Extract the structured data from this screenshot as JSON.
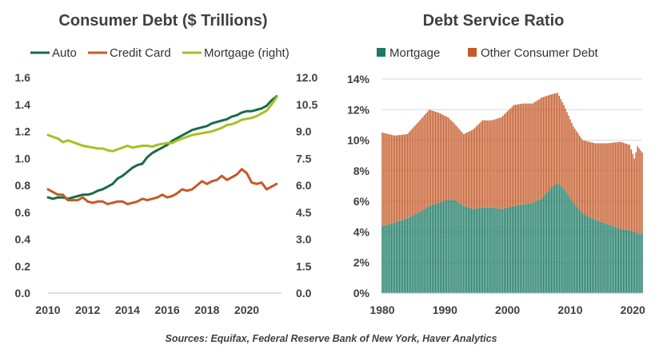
{
  "source": "Sources: Equifax,  Federal  Reserve Bank of New York, Haver Analytics",
  "chart_data": [
    {
      "type": "line",
      "title": "Consumer Debt ($ Trillions)",
      "x_ticks": [
        "2010",
        "2012",
        "2014",
        "2016",
        "2018",
        "2020"
      ],
      "xlim": [
        2010,
        2021.75
      ],
      "y_left_ticks": [
        "0.0",
        "0.2",
        "0.4",
        "0.6",
        "0.8",
        "1.0",
        "1.2",
        "1.4",
        "1.6"
      ],
      "y_left_lim": [
        0,
        1.6
      ],
      "y_right_ticks": [
        "0.0",
        "1.5",
        "3.0",
        "4.5",
        "6.0",
        "7.5",
        "9.0",
        "10.5",
        "12.0"
      ],
      "y_right_lim": [
        0,
        12
      ],
      "grid": false,
      "legend_position": "top",
      "series": [
        {
          "name": "Auto",
          "axis": "left",
          "color": "#1a6b47",
          "x": [
            2010,
            2010.25,
            2010.5,
            2010.75,
            2011,
            2011.25,
            2011.5,
            2011.75,
            2012,
            2012.25,
            2012.5,
            2012.75,
            2013,
            2013.25,
            2013.5,
            2013.75,
            2014,
            2014.25,
            2014.5,
            2014.75,
            2015,
            2015.25,
            2015.5,
            2015.75,
            2016,
            2016.25,
            2016.5,
            2016.75,
            2017,
            2017.25,
            2017.5,
            2017.75,
            2018,
            2018.25,
            2018.5,
            2018.75,
            2019,
            2019.25,
            2019.5,
            2019.75,
            2020,
            2020.25,
            2020.5,
            2020.75,
            2021,
            2021.25,
            2021.5
          ],
          "y": [
            0.71,
            0.7,
            0.71,
            0.71,
            0.7,
            0.71,
            0.72,
            0.73,
            0.73,
            0.74,
            0.76,
            0.77,
            0.79,
            0.81,
            0.85,
            0.87,
            0.9,
            0.93,
            0.95,
            0.96,
            1.01,
            1.04,
            1.06,
            1.08,
            1.1,
            1.13,
            1.15,
            1.17,
            1.19,
            1.21,
            1.22,
            1.23,
            1.24,
            1.26,
            1.27,
            1.28,
            1.29,
            1.31,
            1.32,
            1.34,
            1.35,
            1.35,
            1.36,
            1.37,
            1.39,
            1.43,
            1.46
          ]
        },
        {
          "name": "Credit Card",
          "axis": "left",
          "color": "#c55a28",
          "x": [
            2010,
            2010.25,
            2010.5,
            2010.75,
            2011,
            2011.25,
            2011.5,
            2011.75,
            2012,
            2012.25,
            2012.5,
            2012.75,
            2013,
            2013.25,
            2013.5,
            2013.75,
            2014,
            2014.25,
            2014.5,
            2014.75,
            2015,
            2015.25,
            2015.5,
            2015.75,
            2016,
            2016.25,
            2016.5,
            2016.75,
            2017,
            2017.25,
            2017.5,
            2017.75,
            2018,
            2018.25,
            2018.5,
            2018.75,
            2019,
            2019.25,
            2019.5,
            2019.75,
            2020,
            2020.25,
            2020.5,
            2020.75,
            2021,
            2021.25,
            2021.5
          ],
          "y": [
            0.77,
            0.75,
            0.73,
            0.73,
            0.69,
            0.69,
            0.69,
            0.71,
            0.68,
            0.67,
            0.68,
            0.68,
            0.66,
            0.67,
            0.68,
            0.68,
            0.66,
            0.67,
            0.68,
            0.7,
            0.69,
            0.7,
            0.71,
            0.73,
            0.71,
            0.72,
            0.74,
            0.77,
            0.76,
            0.77,
            0.8,
            0.83,
            0.81,
            0.83,
            0.84,
            0.87,
            0.84,
            0.86,
            0.88,
            0.92,
            0.89,
            0.82,
            0.81,
            0.82,
            0.77,
            0.79,
            0.81
          ]
        },
        {
          "name": "Mortgage (right)",
          "axis": "right",
          "color": "#a8c020",
          "x": [
            2010,
            2010.25,
            2010.5,
            2010.75,
            2011,
            2011.25,
            2011.5,
            2011.75,
            2012,
            2012.25,
            2012.5,
            2012.75,
            2013,
            2013.25,
            2013.5,
            2013.75,
            2014,
            2014.25,
            2014.5,
            2014.75,
            2015,
            2015.25,
            2015.5,
            2015.75,
            2016,
            2016.25,
            2016.5,
            2016.75,
            2017,
            2017.25,
            2017.5,
            2017.75,
            2018,
            2018.25,
            2018.5,
            2018.75,
            2019,
            2019.25,
            2019.5,
            2019.75,
            2020,
            2020.25,
            2020.5,
            2020.75,
            2021,
            2021.25,
            2021.5
          ],
          "y": [
            8.8,
            8.7,
            8.6,
            8.4,
            8.5,
            8.4,
            8.3,
            8.2,
            8.15,
            8.1,
            8.05,
            8.05,
            7.95,
            7.9,
            8.0,
            8.1,
            8.2,
            8.1,
            8.15,
            8.2,
            8.2,
            8.15,
            8.25,
            8.3,
            8.35,
            8.35,
            8.5,
            8.6,
            8.7,
            8.8,
            8.85,
            8.9,
            8.95,
            9.0,
            9.1,
            9.2,
            9.35,
            9.4,
            9.5,
            9.65,
            9.7,
            9.75,
            9.85,
            10.0,
            10.15,
            10.5,
            10.9
          ]
        }
      ]
    },
    {
      "type": "bar",
      "stacked": true,
      "title": "Debt Service Ratio",
      "x_ticks": [
        "1980",
        "1990",
        "2000",
        "2010",
        "2020"
      ],
      "xlim": [
        1980,
        2021.5
      ],
      "y_ticks": [
        "0%",
        "2%",
        "4%",
        "6%",
        "8%",
        "10%",
        "12%",
        "14%"
      ],
      "ylim": [
        0,
        14
      ],
      "grid": true,
      "legend_position": "top",
      "anchors": {
        "x": [
          1980,
          1982,
          1984,
          1986,
          1987.5,
          1989,
          1990.5,
          1991.5,
          1993,
          1994.5,
          1996,
          1997.5,
          1999,
          2001,
          2002.5,
          2004,
          2005.5,
          2007,
          2008,
          2009,
          2010.5,
          2012,
          2014,
          2016,
          2018,
          2019.5,
          2020.25,
          2020.75,
          2021.5
        ],
        "mortgage": [
          4.4,
          4.6,
          4.9,
          5.3,
          5.7,
          5.9,
          6.1,
          6.1,
          5.7,
          5.5,
          5.6,
          5.6,
          5.5,
          5.7,
          5.8,
          5.9,
          6.2,
          6.9,
          7.2,
          6.8,
          5.9,
          5.2,
          4.8,
          4.5,
          4.2,
          4.1,
          4.0,
          3.9,
          3.9
        ],
        "total": [
          10.5,
          10.3,
          10.4,
          11.3,
          12.0,
          11.8,
          11.5,
          11.1,
          10.4,
          10.7,
          11.3,
          11.3,
          11.5,
          12.3,
          12.4,
          12.4,
          12.8,
          13.0,
          13.1,
          12.3,
          10.9,
          10.0,
          9.8,
          9.8,
          9.9,
          9.7,
          8.8,
          9.6,
          9.2
        ]
      },
      "series": [
        {
          "name": "Mortgage",
          "color": "#1a7a64"
        },
        {
          "name": "Other Consumer Debt",
          "color": "#c55a28"
        }
      ]
    }
  ]
}
